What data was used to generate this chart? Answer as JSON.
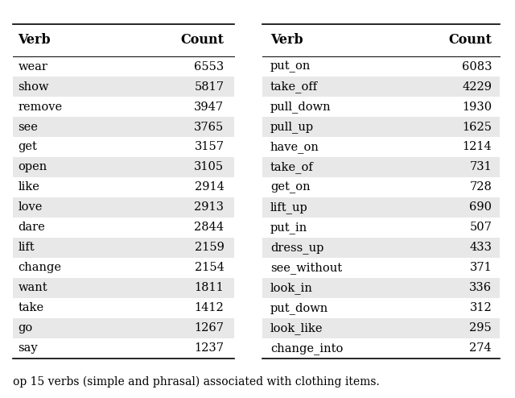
{
  "left_verbs": [
    "wear",
    "show",
    "remove",
    "see",
    "get",
    "open",
    "like",
    "love",
    "dare",
    "lift",
    "change",
    "want",
    "take",
    "go",
    "say"
  ],
  "left_counts": [
    "6553",
    "5817",
    "3947",
    "3765",
    "3157",
    "3105",
    "2914",
    "2913",
    "2844",
    "2159",
    "2154",
    "1811",
    "1412",
    "1267",
    "1237"
  ],
  "right_verbs": [
    "put_on",
    "take_off",
    "pull_down",
    "pull_up",
    "have_on",
    "take_of",
    "get_on",
    "lift_up",
    "put_in",
    "dress_up",
    "see_without",
    "look_in",
    "put_down",
    "look_like",
    "change_into"
  ],
  "right_counts": [
    "6083",
    "4229",
    "1930",
    "1625",
    "1214",
    "731",
    "728",
    "690",
    "507",
    "433",
    "371",
    "336",
    "312",
    "295",
    "274"
  ],
  "caption": "op 15 verbs (simple and phrasal) associated with clothing items.",
  "shaded_rows": [
    1,
    3,
    5,
    7,
    9,
    11,
    13
  ],
  "shade_color": "#e8e8e8",
  "background_color": "#ffffff",
  "font_size": 10.5,
  "header_font_size": 11.5,
  "fig_width": 6.4,
  "fig_height": 4.94,
  "dpi": 100
}
